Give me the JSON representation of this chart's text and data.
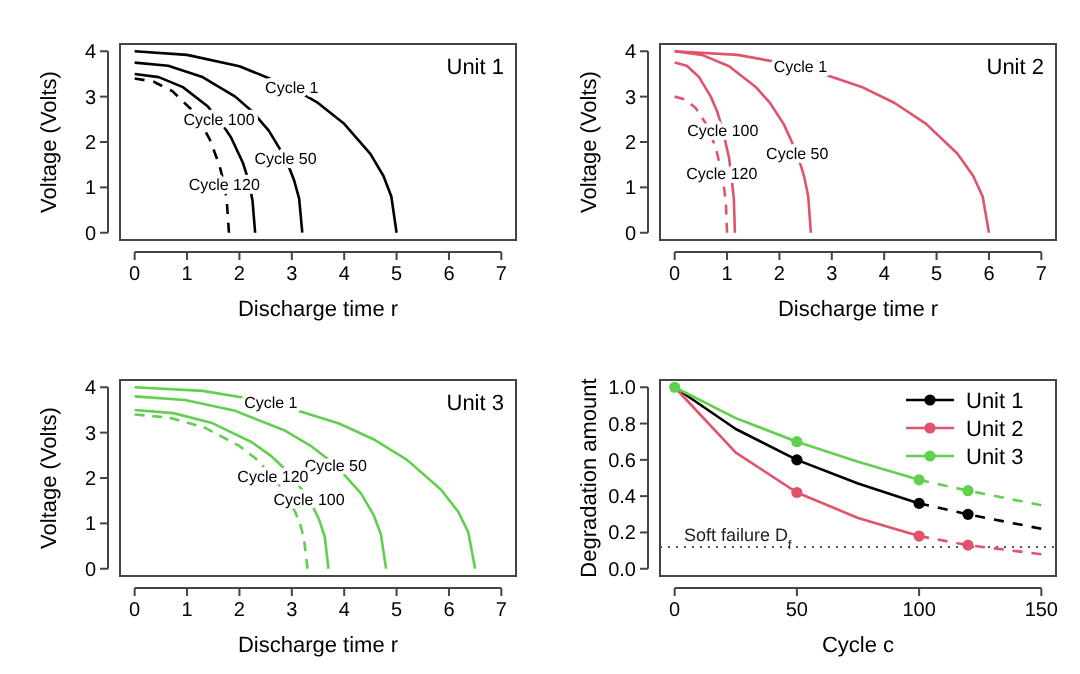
{
  "chart_data": [
    {
      "type": "line",
      "title": "Unit 1",
      "xlabel": "Discharge time r",
      "ylabel": "Voltage (Volts)",
      "xlim": [
        -0.28,
        7.28
      ],
      "ylim": [
        -0.16,
        4.16
      ],
      "xticks": [
        0,
        1,
        2,
        3,
        4,
        5,
        6,
        7
      ],
      "yticks": [
        0,
        1,
        2,
        3,
        4
      ],
      "series": [
        {
          "color": "#000000",
          "x": [
            0,
            1,
            2,
            3,
            3.5,
            4,
            4.5,
            4.75,
            4.9,
            5
          ],
          "values": [
            4,
            3.92,
            3.67,
            3.2,
            2.86,
            2.4,
            1.74,
            1.25,
            0.8,
            0
          ]
        },
        {
          "color": "#000000",
          "x": [
            0,
            0.64,
            1.28,
            1.92,
            2.24,
            2.56,
            2.88,
            3.04,
            3.14,
            3.2
          ],
          "values": [
            3.75,
            3.68,
            3.44,
            3,
            2.68,
            2.25,
            1.64,
            1.17,
            0.75,
            0
          ]
        },
        {
          "color": "#000000",
          "x": [
            0,
            0.46,
            0.92,
            1.38,
            1.61,
            1.84,
            2.07,
            2.19,
            2.25,
            2.3
          ],
          "values": [
            3.5,
            3.43,
            3.21,
            2.8,
            2.5,
            2.1,
            1.53,
            1.09,
            0.7,
            0
          ]
        },
        {
          "color": "#000000",
          "line_style": "dashed",
          "x": [
            0,
            0.36,
            0.72,
            1.08,
            1.26,
            1.44,
            1.62,
            1.71,
            1.76,
            1.8
          ],
          "values": [
            3.4,
            3.33,
            3.12,
            2.72,
            2.43,
            2.04,
            1.48,
            1.06,
            0.68,
            0
          ]
        }
      ],
      "annotations": [
        {
          "text": "Cycle 1",
          "x": 3,
          "y": 3.2
        },
        {
          "text": "Cycle 50",
          "x": 2.88,
          "y": 1.64
        },
        {
          "text": "Cycle 100",
          "x": 1.61,
          "y": 2.5
        },
        {
          "text": "Cycle 120",
          "x": 1.71,
          "y": 1.06
        }
      ]
    },
    {
      "type": "line",
      "title": "Unit 2",
      "xlabel": "Discharge time r",
      "ylabel": "Voltage (Volts)",
      "xlim": [
        -0.28,
        7.28
      ],
      "ylim": [
        -0.16,
        4.16
      ],
      "xticks": [
        0,
        1,
        2,
        3,
        4,
        5,
        6,
        7
      ],
      "yticks": [
        0,
        1,
        2,
        3,
        4
      ],
      "series": [
        {
          "color": "#df536b",
          "x": [
            0,
            1.2,
            2.4,
            3.6,
            4.2,
            4.8,
            5.4,
            5.7,
            5.88,
            6
          ],
          "values": [
            4,
            3.92,
            3.67,
            3.2,
            2.86,
            2.4,
            1.74,
            1.25,
            0.8,
            0
          ]
        },
        {
          "color": "#df536b",
          "x": [
            0,
            0.52,
            1.04,
            1.56,
            1.82,
            2.08,
            2.34,
            2.47,
            2.55,
            2.6
          ],
          "values": [
            4,
            3.92,
            3.67,
            3.2,
            2.86,
            2.4,
            1.74,
            1.25,
            0.8,
            0
          ]
        },
        {
          "color": "#df536b",
          "x": [
            0,
            0.23,
            0.46,
            0.69,
            0.81,
            0.92,
            1.04,
            1.09,
            1.13,
            1.15
          ],
          "values": [
            3.75,
            3.68,
            3.44,
            3,
            2.68,
            2.25,
            1.64,
            1.17,
            0.75,
            0
          ]
        },
        {
          "color": "#df536b",
          "line_style": "dashed",
          "x": [
            0,
            0.2,
            0.4,
            0.6,
            0.7,
            0.8,
            0.9,
            0.95,
            0.98,
            1
          ],
          "values": [
            3,
            2.94,
            2.75,
            2.4,
            2.14,
            1.8,
            1.31,
            0.94,
            0.6,
            0
          ]
        }
      ],
      "annotations": [
        {
          "text": "Cycle 1",
          "x": 2.4,
          "y": 3.67
        },
        {
          "text": "Cycle 50",
          "x": 2.34,
          "y": 1.74
        },
        {
          "text": "Cycle 100",
          "x": 0.92,
          "y": 2.25
        },
        {
          "text": "Cycle 120",
          "x": 0.9,
          "y": 1.31
        }
      ]
    },
    {
      "type": "line",
      "title": "Unit 3",
      "xlabel": "Discharge time r",
      "ylabel": "Voltage (Volts)",
      "xlim": [
        -0.28,
        7.28
      ],
      "ylim": [
        -0.16,
        4.16
      ],
      "xticks": [
        0,
        1,
        2,
        3,
        4,
        5,
        6,
        7
      ],
      "yticks": [
        0,
        1,
        2,
        3,
        4
      ],
      "series": [
        {
          "color": "#61d04f",
          "x": [
            0,
            1.3,
            2.6,
            3.9,
            4.55,
            5.2,
            5.85,
            6.18,
            6.37,
            6.5
          ],
          "values": [
            4,
            3.92,
            3.67,
            3.2,
            2.86,
            2.4,
            1.74,
            1.25,
            0.8,
            0
          ]
        },
        {
          "color": "#61d04f",
          "x": [
            0,
            0.96,
            1.92,
            2.88,
            3.36,
            3.84,
            4.32,
            4.56,
            4.7,
            4.8
          ],
          "values": [
            3.8,
            3.72,
            3.48,
            3.04,
            2.71,
            2.28,
            1.66,
            1.19,
            0.76,
            0
          ]
        },
        {
          "color": "#61d04f",
          "x": [
            0,
            0.74,
            1.48,
            2.22,
            2.59,
            2.96,
            3.33,
            3.52,
            3.63,
            3.7
          ],
          "values": [
            3.5,
            3.43,
            3.21,
            2.8,
            2.5,
            2.1,
            1.53,
            1.09,
            0.7,
            0
          ]
        },
        {
          "color": "#61d04f",
          "line_style": "dashed",
          "x": [
            0,
            0.66,
            1.32,
            1.98,
            2.31,
            2.64,
            2.97,
            3.14,
            3.23,
            3.3
          ],
          "values": [
            3.4,
            3.33,
            3.12,
            2.72,
            2.43,
            2.04,
            1.48,
            1.06,
            0.68,
            0
          ]
        }
      ],
      "annotations": [
        {
          "text": "Cycle 1",
          "x": 2.6,
          "y": 3.67
        },
        {
          "text": "Cycle 50",
          "x": 3.84,
          "y": 2.28
        },
        {
          "text": "Cycle 100",
          "x": 3.33,
          "y": 1.53
        },
        {
          "text": "Cycle 120",
          "x": 2.64,
          "y": 2.04
        }
      ]
    },
    {
      "type": "line",
      "xlabel": "Cycle c",
      "ylabel": "Degradation amount",
      "xlim": [
        -6,
        156
      ],
      "ylim": [
        -0.04,
        1.04
      ],
      "xticks": [
        0,
        50,
        100,
        150
      ],
      "yticks": [
        {
          "value": 0,
          "label": "0.0"
        },
        0.2,
        0.4,
        0.6,
        0.8,
        {
          "value": 1,
          "label": "1.0"
        }
      ],
      "legend": "top right",
      "series": [
        {
          "name": "Unit 1",
          "color": "#000000",
          "x": [
            0,
            25,
            50,
            75,
            100
          ],
          "values": [
            1,
            0.77,
            0.6,
            0.47,
            0.36
          ]
        },
        {
          "name": "Unit 2",
          "color": "#df536b",
          "x": [
            0,
            25,
            50,
            75,
            100
          ],
          "values": [
            1,
            0.64,
            0.42,
            0.28,
            0.18
          ]
        },
        {
          "name": "Unit 3",
          "color": "#61d04f",
          "x": [
            0,
            25,
            50,
            75,
            100
          ],
          "values": [
            1,
            0.83,
            0.7,
            0.59,
            0.49
          ]
        },
        {
          "color": "#000000",
          "line_style": "dashed",
          "x": [
            100,
            120,
            150
          ],
          "values": [
            0.36,
            0.3,
            0.22
          ]
        },
        {
          "color": "#df536b",
          "line_style": "dashed",
          "x": [
            100,
            120,
            150
          ],
          "values": [
            0.18,
            0.13,
            0.08
          ]
        },
        {
          "color": "#61d04f",
          "line_style": "dashed",
          "x": [
            100,
            120,
            150
          ],
          "values": [
            0.49,
            0.43,
            0.35
          ]
        },
        {
          "type": "scatter",
          "marker": "circle",
          "color": "#000000",
          "x": [
            50,
            100,
            120
          ],
          "values": [
            0.6,
            0.36,
            0.3
          ]
        },
        {
          "type": "scatter",
          "marker": "circle",
          "color": "#df536b",
          "x": [
            50,
            100,
            120
          ],
          "values": [
            0.42,
            0.18,
            0.13
          ]
        },
        {
          "type": "scatter",
          "marker": "circle",
          "color": "#61d04f",
          "x": [
            0,
            50,
            100,
            120
          ],
          "values": [
            1,
            0.7,
            0.49,
            0.43
          ]
        }
      ],
      "ref_lines": [
        {
          "axis": "y",
          "value": 0.12,
          "label": "Soft failure D$_{f}$",
          "line_style": "dotted",
          "color": "#555555"
        }
      ]
    }
  ]
}
